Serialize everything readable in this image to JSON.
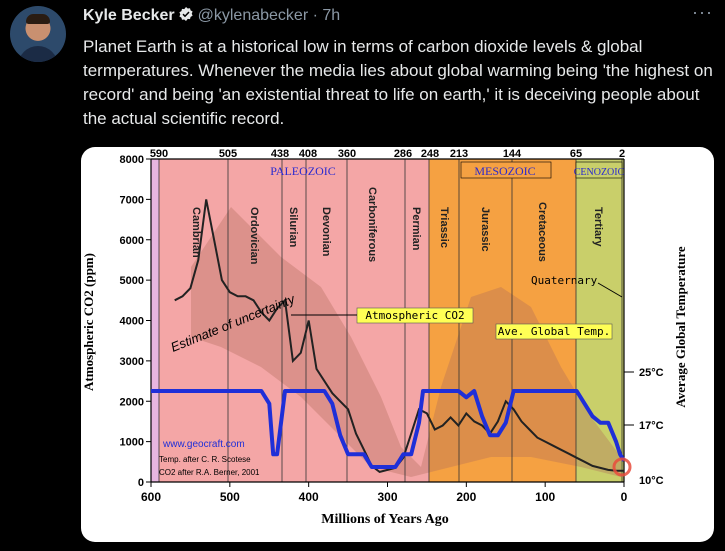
{
  "tweet": {
    "author_name": "Kyle Becker",
    "handle": "@kylenabecker",
    "separator": "·",
    "time": "7h",
    "more_icon": "more-icon",
    "text": "Planet Earth is at a historical low in terms of carbon dioxide levels & global termperatures. Whenever the media lies about global warming being 'the highest on record' and being 'an existential threat to life on earth,' it is deceiving people about the actual scientific record."
  },
  "colors": {
    "background": "#000000",
    "text": "#e7e9ea",
    "muted": "#8b98a5",
    "verified": "#1d9bf0",
    "paleozoic": "#f4a6a6",
    "mesozoic": "#f5a142",
    "cenozoic": "#c9c96a",
    "co2_line": "#222222",
    "temp_line": "#1f2fd8"
  },
  "chart": {
    "type": "line",
    "title": "",
    "ylabel_left": "Atmospheric CO2 (ppm)",
    "ylabel_right": "Average Global Temperature",
    "xlabel": "Millions of Years Ago",
    "xlim": [
      600,
      0
    ],
    "ylim": [
      0,
      8000
    ],
    "x_ticks": [
      "600",
      "500",
      "400",
      "300",
      "200",
      "100",
      "0"
    ],
    "y_ticks": [
      "0",
      "1000",
      "2000",
      "3000",
      "4000",
      "5000",
      "6000",
      "7000",
      "8000"
    ],
    "top_ticks": [
      "590",
      "505",
      "438",
      "408",
      "360",
      "286",
      "248",
      "213",
      "144",
      "65",
      "2"
    ],
    "eras": [
      "PALEOZOIC",
      "MESOZOIC",
      "CENOZOIC"
    ],
    "periods": [
      "Cambrian",
      "Ordovician",
      "Silurian",
      "Devonian",
      "Carboniferous",
      "Permian",
      "Triassic",
      "Jurassic",
      "Cretaceous",
      "Tertiary"
    ],
    "temp_labels": [
      "25°C",
      "17°C",
      "10°C"
    ],
    "annotations": {
      "uncertainty": "Estimate of uncertainty",
      "co2": "Atmospheric CO2",
      "temp": "Ave. Global Temp.",
      "quaternary": "Quaternary",
      "source_url": "www.geocraft.com",
      "source_temp": "Temp. after C. R. Scotese",
      "source_co2": "CO2 after R.A. Berner, 2001"
    }
  },
  "chart_data": {
    "type": "line",
    "xlabel": "Millions of Years Ago",
    "ylabel": "Atmospheric CO2 (ppm)",
    "xlim": [
      600,
      0
    ],
    "ylim": [
      0,
      8000
    ],
    "series": [
      {
        "name": "Atmospheric CO2",
        "x": [
          600,
          590,
          580,
          570,
          560,
          550,
          540,
          530,
          520,
          510,
          500,
          490,
          480,
          470,
          460,
          450,
          440,
          430,
          420,
          410,
          400,
          390,
          380,
          370,
          360,
          350,
          340,
          330,
          320,
          310,
          300,
          290,
          280,
          270,
          260,
          250,
          240,
          230,
          220,
          210,
          200,
          190,
          180,
          170,
          160,
          150,
          140,
          130,
          120,
          110,
          100,
          90,
          80,
          70,
          60,
          50,
          40,
          30,
          20,
          10,
          0
        ],
        "y": [
          null,
          null,
          null,
          4500,
          4600,
          4800,
          5500,
          7000,
          6000,
          5000,
          4700,
          4600,
          4600,
          4500,
          4200,
          4000,
          4300,
          4500,
          3000,
          3200,
          4000,
          2800,
          2500,
          2200,
          2000,
          1800,
          1200,
          800,
          400,
          250,
          300,
          350,
          600,
          1200,
          1800,
          1700,
          1300,
          1400,
          1600,
          1400,
          1700,
          1500,
          1400,
          1200,
          1500,
          2000,
          1800,
          1500,
          1300,
          1100,
          1000,
          900,
          800,
          700,
          600,
          500,
          400,
          350,
          300,
          280,
          280
        ]
      },
      {
        "name": "Ave. Global Temp.",
        "x": [
          600,
          590,
          580,
          570,
          560,
          550,
          540,
          530,
          520,
          510,
          500,
          490,
          480,
          470,
          460,
          450,
          445,
          440,
          430,
          420,
          410,
          400,
          390,
          380,
          370,
          360,
          350,
          340,
          330,
          320,
          310,
          300,
          290,
          280,
          270,
          260,
          255,
          250,
          240,
          230,
          220,
          210,
          200,
          190,
          180,
          170,
          160,
          150,
          140,
          130,
          120,
          110,
          100,
          90,
          80,
          70,
          60,
          50,
          40,
          30,
          20,
          10,
          5,
          0
        ],
        "y": [
          22,
          22,
          22,
          22,
          22,
          22,
          22,
          22,
          22,
          22,
          22,
          22,
          22,
          22,
          22,
          20,
          12,
          12,
          22,
          22,
          22,
          22,
          22,
          22,
          20,
          15,
          12,
          12,
          12,
          10,
          10,
          10,
          10,
          12,
          12,
          17,
          22,
          22,
          22,
          22,
          22,
          22,
          21,
          22,
          18,
          15,
          15,
          17,
          22,
          22,
          22,
          22,
          22,
          22,
          22,
          22,
          22,
          20,
          18,
          17,
          17,
          14,
          12,
          11
        ]
      }
    ]
  }
}
